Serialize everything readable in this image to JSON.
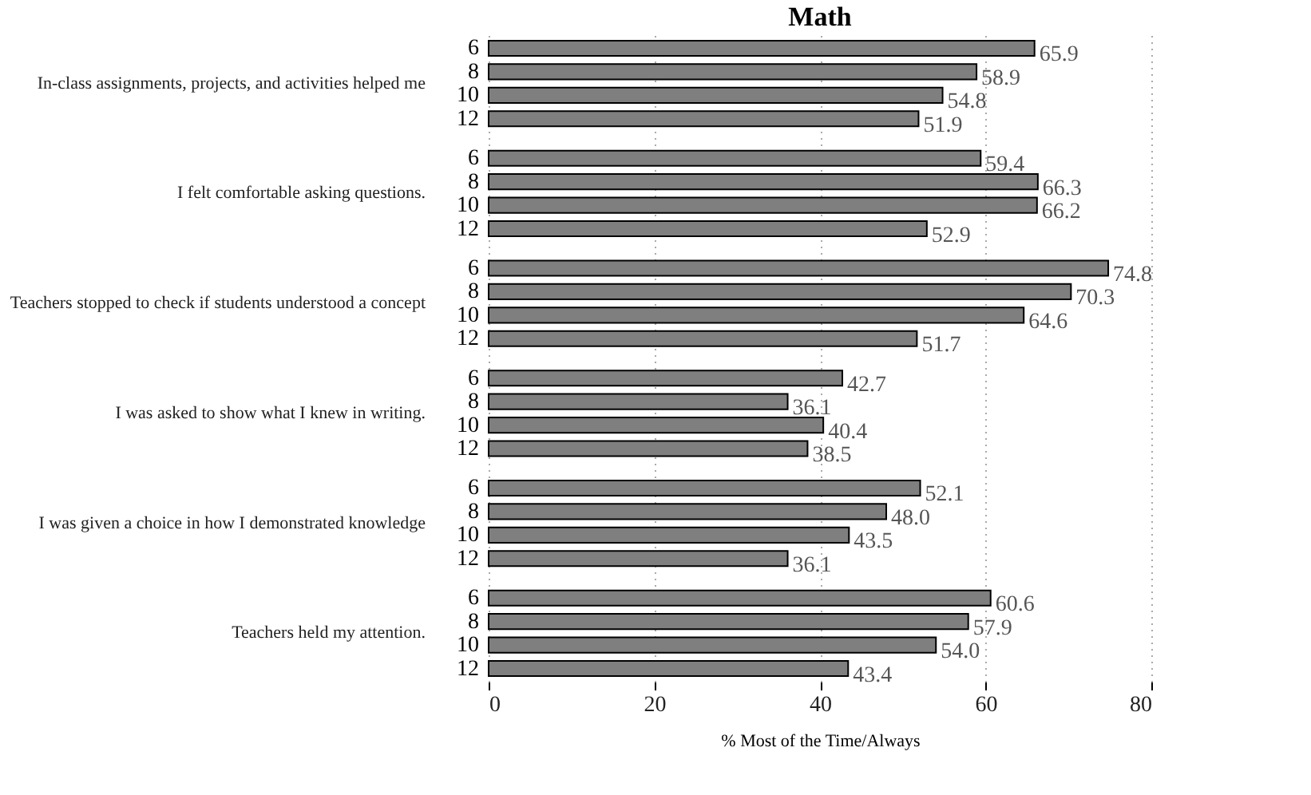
{
  "chart_data": {
    "type": "bar",
    "orientation": "horizontal",
    "title": "Math",
    "xlabel": "% Most of the Time/Always",
    "categories": [
      "In-class assignments, projects, and activities helped me",
      "I felt comfortable asking questions.",
      "Teachers stopped to check if students understood a concept",
      "I was asked to show what I knew in writing.",
      "I was given a choice in how I demonstrated knowledge",
      "Teachers held my attention."
    ],
    "series": [
      {
        "name": "6",
        "color": "#7f7f7f",
        "values": [
          65.9,
          59.4,
          74.8,
          42.7,
          52.1,
          60.6
        ],
        "value_labels": [
          "65.9",
          "59.4",
          "74.8",
          "42.7",
          "52.1",
          "60.6"
        ]
      },
      {
        "name": "8",
        "color": "#7f7f7f",
        "values": [
          58.9,
          66.3,
          70.3,
          36.1,
          48.0,
          57.9
        ],
        "value_labels": [
          "58.9",
          "66.3",
          "70.3",
          "36.1",
          "48.0",
          "57.9"
        ]
      },
      {
        "name": "10",
        "color": "#7f7f7f",
        "values": [
          54.8,
          66.2,
          64.6,
          40.4,
          43.5,
          54.0
        ],
        "value_labels": [
          "54.8",
          "66.2",
          "64.6",
          "40.4",
          "43.5",
          "54.0"
        ]
      },
      {
        "name": "12",
        "color": "#7f7f7f",
        "values": [
          51.9,
          52.9,
          51.7,
          38.5,
          36.1,
          43.4
        ],
        "value_labels": [
          "51.9",
          "52.9",
          "51.7",
          "38.5",
          "36.1",
          "43.4"
        ]
      }
    ],
    "xlim": [
      0,
      80
    ],
    "xticks": [
      0,
      20,
      40,
      60,
      80
    ],
    "grid": "x",
    "legend": false
  }
}
